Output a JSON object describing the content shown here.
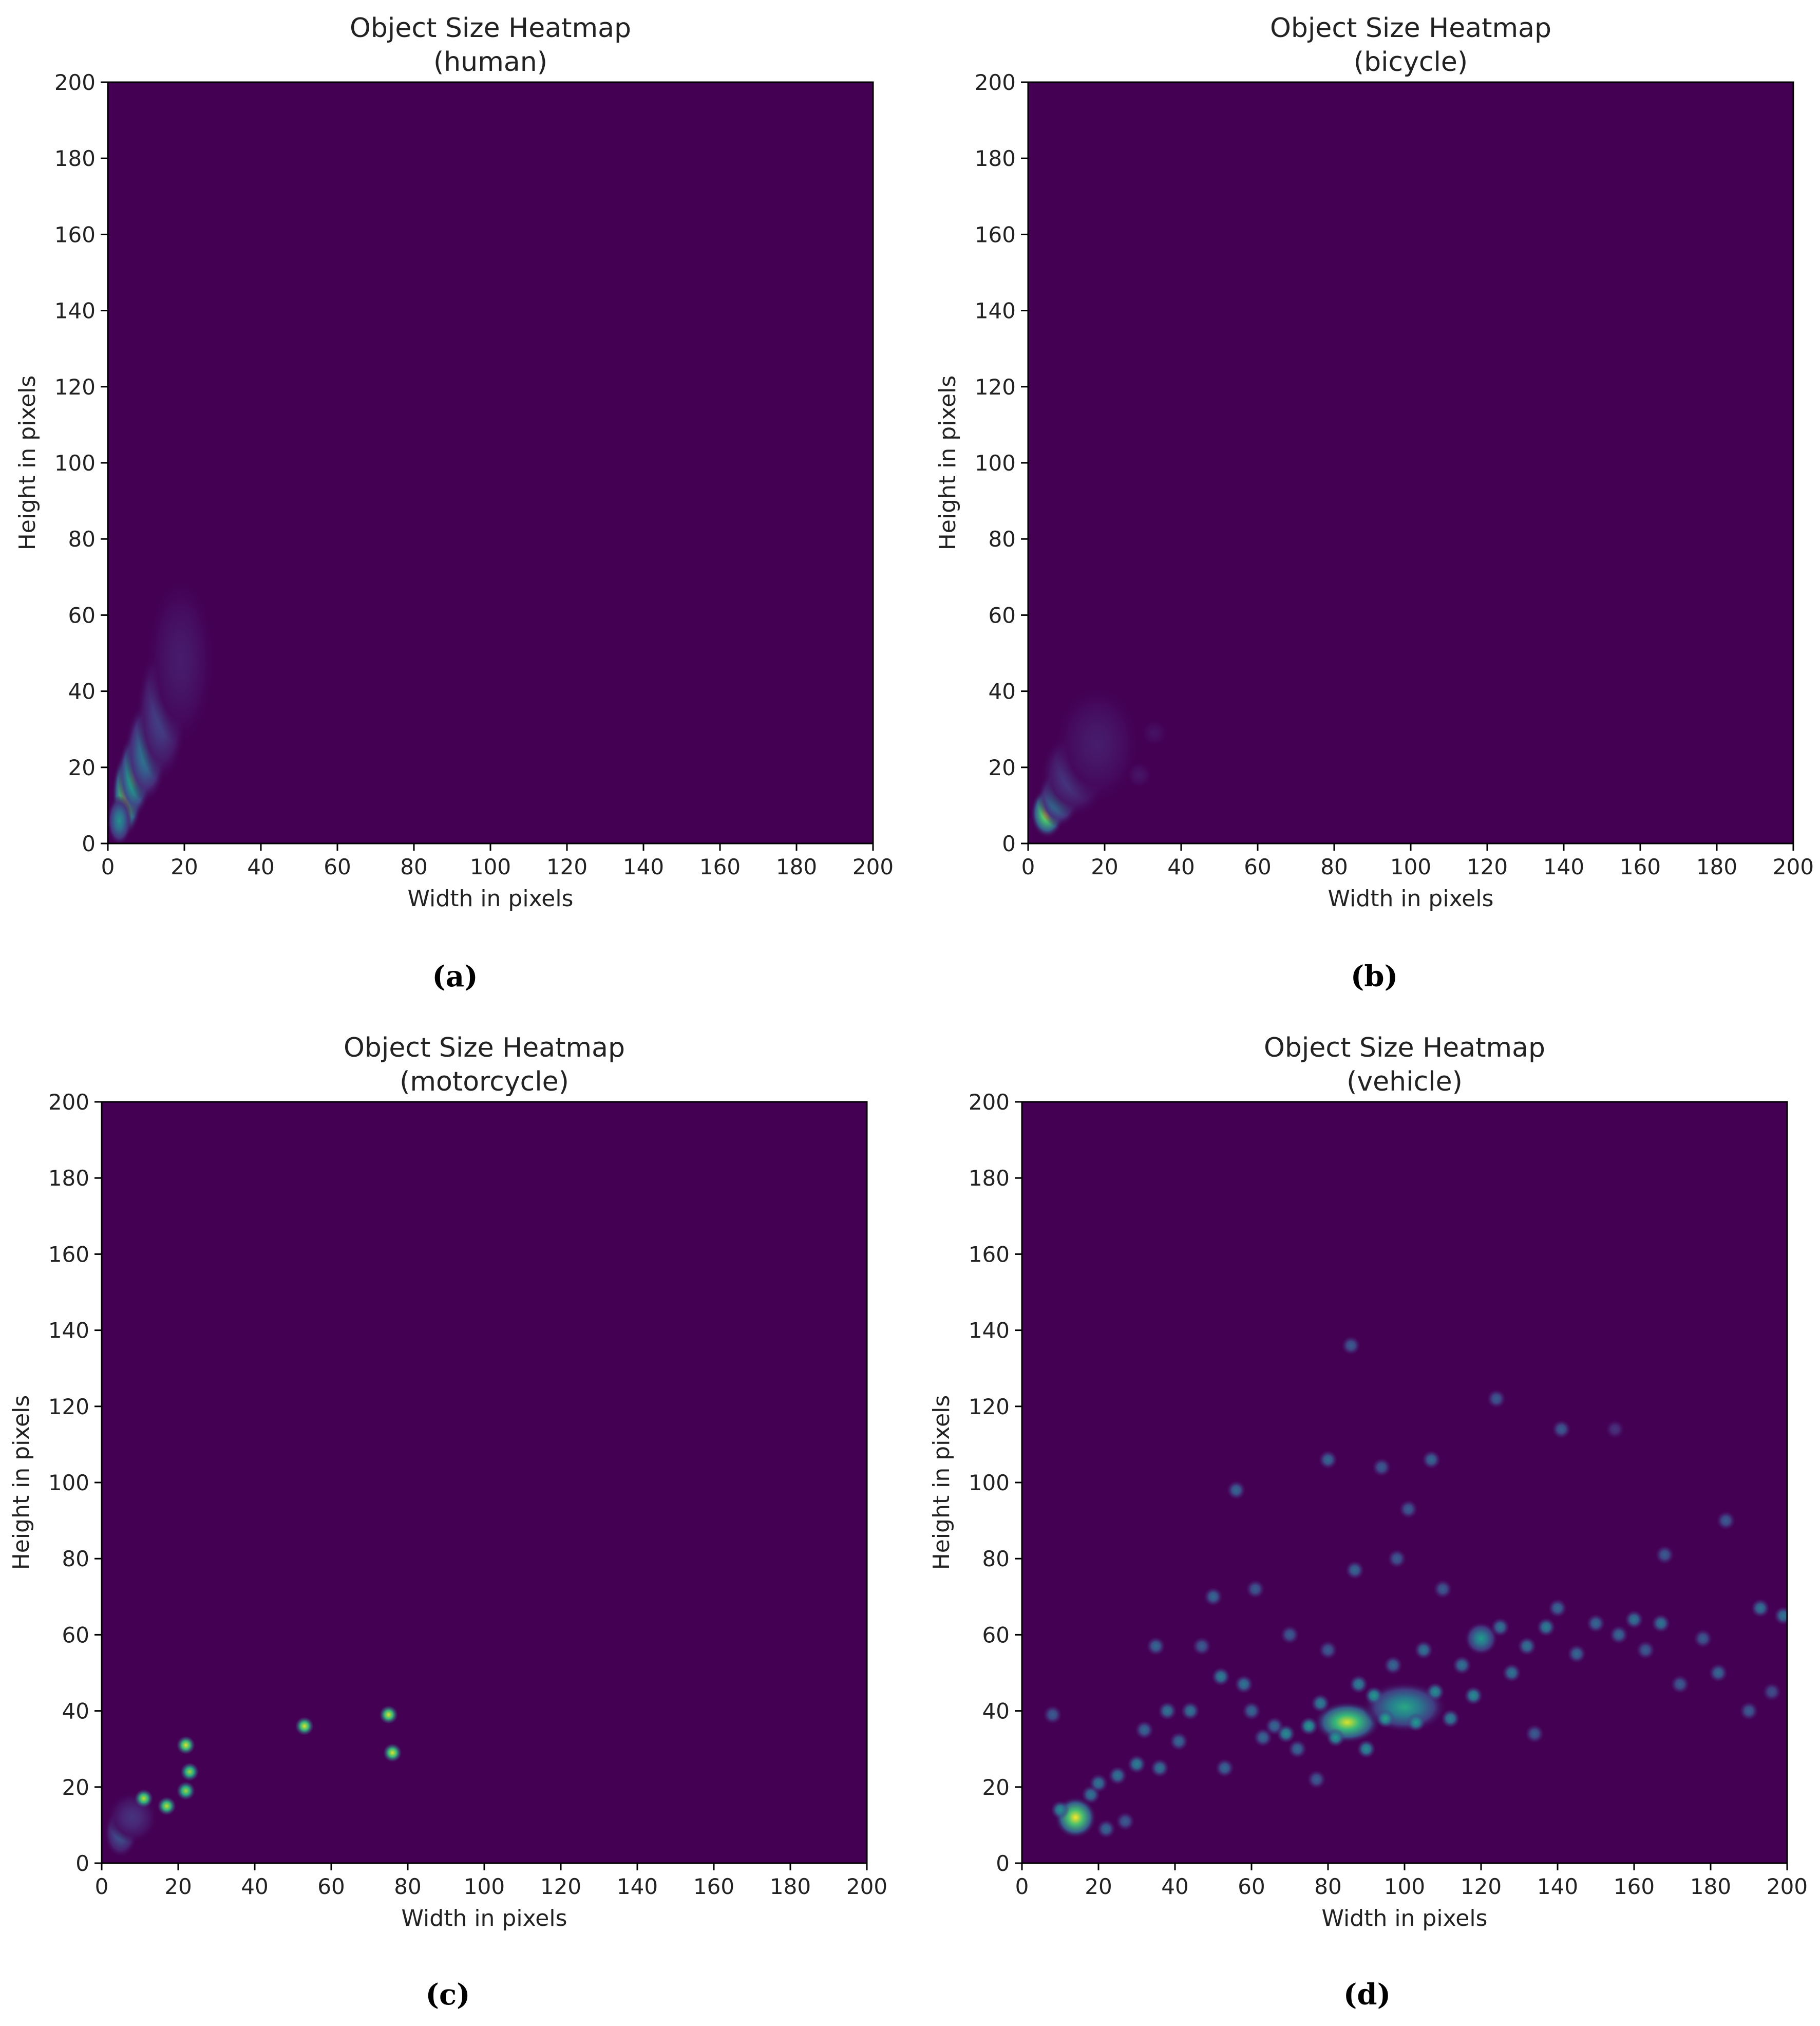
{
  "chart_data": [
    {
      "type": "heatmap",
      "panel": "(a)",
      "title": "Object Size Heatmap",
      "subtitle": "(human)",
      "xlabel": "Width in pixels",
      "ylabel": "Height in pixels",
      "xlim": [
        0,
        200
      ],
      "ylim": [
        0,
        200
      ],
      "xticks": [
        0,
        20,
        40,
        60,
        80,
        100,
        120,
        140,
        160,
        180,
        200
      ],
      "yticks": [
        0,
        20,
        40,
        60,
        80,
        100,
        120,
        140,
        160,
        180,
        200
      ],
      "grid": false,
      "colormap": "viridis",
      "background_color": "#440154",
      "hotspots": [
        {
          "x": 5,
          "y": 13,
          "intensity": 1.0,
          "sx": 1.8,
          "sy": 5
        },
        {
          "x": 7,
          "y": 18,
          "intensity": 0.75,
          "sx": 2,
          "sy": 5
        },
        {
          "x": 10,
          "y": 24,
          "intensity": 0.45,
          "sx": 2.5,
          "sy": 6
        },
        {
          "x": 14,
          "y": 34,
          "intensity": 0.22,
          "sx": 3,
          "sy": 8
        },
        {
          "x": 19,
          "y": 48,
          "intensity": 0.08,
          "sx": 4,
          "sy": 10
        },
        {
          "x": 3,
          "y": 6,
          "intensity": 0.5,
          "sx": 1.5,
          "sy": 3
        }
      ]
    },
    {
      "type": "heatmap",
      "panel": "(b)",
      "title": "Object Size Heatmap",
      "subtitle": "(bicycle)",
      "xlabel": "Width in pixels",
      "ylabel": "Height in pixels",
      "xlim": [
        0,
        200
      ],
      "ylim": [
        0,
        200
      ],
      "xticks": [
        0,
        20,
        40,
        60,
        80,
        100,
        120,
        140,
        160,
        180,
        200
      ],
      "yticks": [
        0,
        20,
        40,
        60,
        80,
        100,
        120,
        140,
        160,
        180,
        200
      ],
      "grid": false,
      "colormap": "viridis",
      "background_color": "#440154",
      "hotspots": [
        {
          "x": 5,
          "y": 8,
          "intensity": 1.0,
          "sx": 2,
          "sy": 3
        },
        {
          "x": 8,
          "y": 12,
          "intensity": 0.5,
          "sx": 2.5,
          "sy": 3.5
        },
        {
          "x": 12,
          "y": 18,
          "intensity": 0.2,
          "sx": 4,
          "sy": 5
        },
        {
          "x": 18,
          "y": 26,
          "intensity": 0.08,
          "sx": 5,
          "sy": 7
        },
        {
          "x": 29,
          "y": 18,
          "intensity": 0.06,
          "sx": 1.5,
          "sy": 1.5
        },
        {
          "x": 33,
          "y": 29,
          "intensity": 0.05,
          "sx": 1.5,
          "sy": 1.5
        }
      ]
    },
    {
      "type": "heatmap",
      "panel": "(c)",
      "title": "Object Size Heatmap",
      "subtitle": "(motorcycle)",
      "xlabel": "Width in pixels",
      "ylabel": "Height in pixels",
      "xlim": [
        0,
        200
      ],
      "ylim": [
        0,
        200
      ],
      "xticks": [
        0,
        20,
        40,
        60,
        80,
        100,
        120,
        140,
        160,
        180,
        200
      ],
      "yticks": [
        0,
        20,
        40,
        60,
        80,
        100,
        120,
        140,
        160,
        180,
        200
      ],
      "grid": false,
      "colormap": "viridis",
      "background_color": "#440154",
      "points": [
        {
          "x": 11,
          "y": 17,
          "intensity": 0.9
        },
        {
          "x": 17,
          "y": 15,
          "intensity": 0.9
        },
        {
          "x": 22,
          "y": 31,
          "intensity": 0.95
        },
        {
          "x": 23,
          "y": 24,
          "intensity": 0.85
        },
        {
          "x": 22,
          "y": 19,
          "intensity": 0.85
        },
        {
          "x": 53,
          "y": 36,
          "intensity": 0.95
        },
        {
          "x": 75,
          "y": 39,
          "intensity": 0.95
        },
        {
          "x": 76,
          "y": 29,
          "intensity": 0.95
        }
      ],
      "hotspots": [
        {
          "x": 5,
          "y": 8,
          "intensity": 0.3,
          "sx": 2,
          "sy": 3
        },
        {
          "x": 8,
          "y": 12,
          "intensity": 0.15,
          "sx": 3,
          "sy": 3
        }
      ]
    },
    {
      "type": "heatmap",
      "panel": "(d)",
      "title": "Object Size Heatmap",
      "subtitle": "(vehicle)",
      "xlabel": "Width in pixels",
      "ylabel": "Height in pixels",
      "xlim": [
        0,
        200
      ],
      "ylim": [
        0,
        200
      ],
      "xticks": [
        0,
        20,
        40,
        60,
        80,
        100,
        120,
        140,
        160,
        180,
        200
      ],
      "yticks": [
        0,
        20,
        40,
        60,
        80,
        100,
        120,
        140,
        160,
        180,
        200
      ],
      "grid": false,
      "colormap": "viridis",
      "background_color": "#440154",
      "hotspots": [
        {
          "x": 14,
          "y": 12,
          "intensity": 1.0,
          "sx": 2.5,
          "sy": 2.5
        },
        {
          "x": 85,
          "y": 37,
          "intensity": 0.95,
          "sx": 4,
          "sy": 2.5
        },
        {
          "x": 100,
          "y": 41,
          "intensity": 0.6,
          "sx": 5,
          "sy": 3
        },
        {
          "x": 120,
          "y": 59,
          "intensity": 0.55,
          "sx": 2,
          "sy": 2
        }
      ],
      "points": [
        {
          "x": 8,
          "y": 39,
          "intensity": 0.3
        },
        {
          "x": 10,
          "y": 14,
          "intensity": 0.5
        },
        {
          "x": 18,
          "y": 18,
          "intensity": 0.4
        },
        {
          "x": 20,
          "y": 21,
          "intensity": 0.4
        },
        {
          "x": 22,
          "y": 9,
          "intensity": 0.35
        },
        {
          "x": 25,
          "y": 23,
          "intensity": 0.4
        },
        {
          "x": 27,
          "y": 11,
          "intensity": 0.3
        },
        {
          "x": 30,
          "y": 26,
          "intensity": 0.45
        },
        {
          "x": 32,
          "y": 35,
          "intensity": 0.35
        },
        {
          "x": 35,
          "y": 57,
          "intensity": 0.35
        },
        {
          "x": 36,
          "y": 25,
          "intensity": 0.4
        },
        {
          "x": 38,
          "y": 40,
          "intensity": 0.4
        },
        {
          "x": 41,
          "y": 32,
          "intensity": 0.35
        },
        {
          "x": 44,
          "y": 40,
          "intensity": 0.4
        },
        {
          "x": 47,
          "y": 57,
          "intensity": 0.3
        },
        {
          "x": 50,
          "y": 70,
          "intensity": 0.35
        },
        {
          "x": 52,
          "y": 49,
          "intensity": 0.45
        },
        {
          "x": 53,
          "y": 25,
          "intensity": 0.35
        },
        {
          "x": 56,
          "y": 98,
          "intensity": 0.35
        },
        {
          "x": 58,
          "y": 47,
          "intensity": 0.4
        },
        {
          "x": 60,
          "y": 40,
          "intensity": 0.35
        },
        {
          "x": 61,
          "y": 72,
          "intensity": 0.3
        },
        {
          "x": 63,
          "y": 33,
          "intensity": 0.35
        },
        {
          "x": 66,
          "y": 36,
          "intensity": 0.35
        },
        {
          "x": 69,
          "y": 34,
          "intensity": 0.5
        },
        {
          "x": 70,
          "y": 60,
          "intensity": 0.3
        },
        {
          "x": 72,
          "y": 30,
          "intensity": 0.35
        },
        {
          "x": 75,
          "y": 36,
          "intensity": 0.55
        },
        {
          "x": 77,
          "y": 22,
          "intensity": 0.3
        },
        {
          "x": 78,
          "y": 42,
          "intensity": 0.45
        },
        {
          "x": 80,
          "y": 106,
          "intensity": 0.35
        },
        {
          "x": 80,
          "y": 56,
          "intensity": 0.3
        },
        {
          "x": 82,
          "y": 33,
          "intensity": 0.55
        },
        {
          "x": 86,
          "y": 136,
          "intensity": 0.3
        },
        {
          "x": 87,
          "y": 77,
          "intensity": 0.35
        },
        {
          "x": 88,
          "y": 47,
          "intensity": 0.45
        },
        {
          "x": 90,
          "y": 30,
          "intensity": 0.5
        },
        {
          "x": 92,
          "y": 44,
          "intensity": 0.55
        },
        {
          "x": 94,
          "y": 104,
          "intensity": 0.3
        },
        {
          "x": 95,
          "y": 38,
          "intensity": 0.6
        },
        {
          "x": 97,
          "y": 52,
          "intensity": 0.35
        },
        {
          "x": 98,
          "y": 80,
          "intensity": 0.3
        },
        {
          "x": 101,
          "y": 93,
          "intensity": 0.3
        },
        {
          "x": 103,
          "y": 37,
          "intensity": 0.55
        },
        {
          "x": 105,
          "y": 56,
          "intensity": 0.4
        },
        {
          "x": 107,
          "y": 106,
          "intensity": 0.35
        },
        {
          "x": 108,
          "y": 45,
          "intensity": 0.5
        },
        {
          "x": 110,
          "y": 72,
          "intensity": 0.3
        },
        {
          "x": 112,
          "y": 38,
          "intensity": 0.45
        },
        {
          "x": 115,
          "y": 52,
          "intensity": 0.4
        },
        {
          "x": 118,
          "y": 44,
          "intensity": 0.5
        },
        {
          "x": 124,
          "y": 122,
          "intensity": 0.3
        },
        {
          "x": 125,
          "y": 62,
          "intensity": 0.4
        },
        {
          "x": 128,
          "y": 50,
          "intensity": 0.4
        },
        {
          "x": 132,
          "y": 57,
          "intensity": 0.4
        },
        {
          "x": 134,
          "y": 34,
          "intensity": 0.3
        },
        {
          "x": 137,
          "y": 62,
          "intensity": 0.45
        },
        {
          "x": 140,
          "y": 67,
          "intensity": 0.35
        },
        {
          "x": 141,
          "y": 114,
          "intensity": 0.3
        },
        {
          "x": 145,
          "y": 55,
          "intensity": 0.35
        },
        {
          "x": 150,
          "y": 63,
          "intensity": 0.35
        },
        {
          "x": 155,
          "y": 114,
          "intensity": 0.15
        },
        {
          "x": 156,
          "y": 60,
          "intensity": 0.35
        },
        {
          "x": 160,
          "y": 64,
          "intensity": 0.4
        },
        {
          "x": 163,
          "y": 56,
          "intensity": 0.3
        },
        {
          "x": 167,
          "y": 63,
          "intensity": 0.4
        },
        {
          "x": 168,
          "y": 81,
          "intensity": 0.3
        },
        {
          "x": 172,
          "y": 47,
          "intensity": 0.3
        },
        {
          "x": 178,
          "y": 59,
          "intensity": 0.3
        },
        {
          "x": 182,
          "y": 50,
          "intensity": 0.35
        },
        {
          "x": 184,
          "y": 90,
          "intensity": 0.3
        },
        {
          "x": 190,
          "y": 40,
          "intensity": 0.3
        },
        {
          "x": 193,
          "y": 67,
          "intensity": 0.4
        },
        {
          "x": 196,
          "y": 45,
          "intensity": 0.25
        },
        {
          "x": 199,
          "y": 65,
          "intensity": 0.4
        }
      ]
    }
  ]
}
